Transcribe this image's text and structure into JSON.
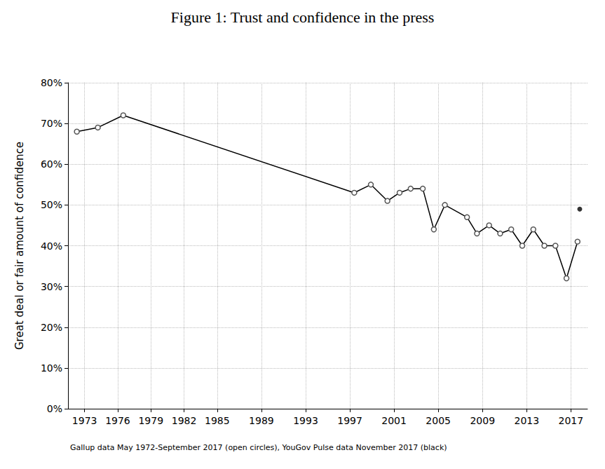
{
  "chart_data": {
    "type": "line",
    "title": "Figure 1: Trust and confidence in the press",
    "y_label": "Great deal or fair amount of confidence",
    "note": "Gallup data May 1972-September 2017 (open circles), YouGov Pulse data November 2017 (black)",
    "xlim": [
      1971.5,
      2018.5
    ],
    "xticks": [
      1973,
      1976,
      1979,
      1982,
      1985,
      1989,
      1993,
      1997,
      2001,
      2005,
      2009,
      2013,
      2017
    ],
    "ylim": [
      0,
      80
    ],
    "yticks": [
      {
        "value": 0,
        "label": "0%"
      },
      {
        "value": 10,
        "label": "10%"
      },
      {
        "value": 20,
        "label": "20%"
      },
      {
        "value": 30,
        "label": "30%"
      },
      {
        "value": 40,
        "label": "40%"
      },
      {
        "value": 50,
        "label": "50%"
      },
      {
        "value": 60,
        "label": "60%"
      },
      {
        "value": 70,
        "label": "70%"
      },
      {
        "value": 80,
        "label": "80%"
      }
    ],
    "grid": true,
    "series": [
      {
        "type": "line",
        "color": "#000000",
        "marker": "open-circle",
        "line_style": "solid",
        "x": [
          1972.3,
          1974.2,
          1976.5,
          1997.4,
          1998.9,
          2000.4,
          2001.5,
          2002.5,
          2003.6,
          2004.6,
          2005.6,
          2007.6,
          2008.5,
          2009.6,
          2010.6,
          2011.6,
          2012.6,
          2013.6,
          2014.6,
          2015.6,
          2016.6,
          2017.6
        ],
        "values": [
          68,
          69,
          72,
          53,
          55,
          51,
          53,
          54,
          54,
          44,
          50,
          47,
          43,
          45,
          43,
          44,
          40,
          44,
          40,
          40,
          32,
          41
        ]
      },
      {
        "type": "scatter",
        "color": "#000000",
        "marker": "filled-circle",
        "x": [
          2017.8
        ],
        "values": [
          49
        ]
      }
    ]
  }
}
